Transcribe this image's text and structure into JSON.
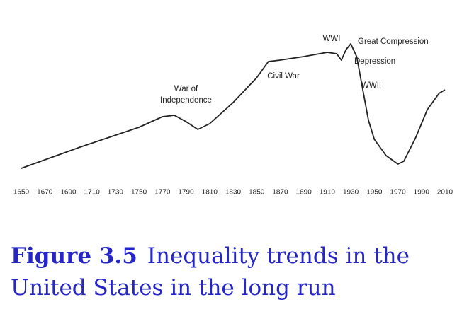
{
  "chart_data": {
    "type": "line",
    "x": [
      1650,
      1700,
      1750,
      1770,
      1780,
      1790,
      1800,
      1810,
      1830,
      1850,
      1860,
      1870,
      1890,
      1910,
      1918,
      1922,
      1926,
      1930,
      1935,
      1940,
      1945,
      1950,
      1960,
      1970,
      1975,
      1985,
      1995,
      2005,
      2010
    ],
    "series": [
      {
        "color": "#222222",
        "values": [
          6,
          21,
          35,
          42.5,
          43.5,
          39,
          33.5,
          37.5,
          52.5,
          70,
          81.5,
          82.5,
          85,
          88,
          87,
          82.5,
          90,
          94,
          85,
          62.5,
          40,
          26.5,
          15,
          9,
          11,
          27.5,
          47.5,
          59,
          61.5
        ]
      }
    ],
    "xlim": [
      1650,
      2010
    ],
    "ylim": [
      0,
      100
    ],
    "xticks": [
      1650,
      1670,
      1690,
      1710,
      1730,
      1750,
      1770,
      1790,
      1810,
      1830,
      1850,
      1870,
      1890,
      1910,
      1930,
      1950,
      1970,
      1990,
      2010
    ],
    "annotations": [
      "War of Independence",
      "Civil War",
      "WWI",
      "Great Compression",
      "Depression",
      "WWII"
    ]
  },
  "caption": {
    "label": "Figure 3.5",
    "text": "Inequality trends in the United States in the long run"
  }
}
